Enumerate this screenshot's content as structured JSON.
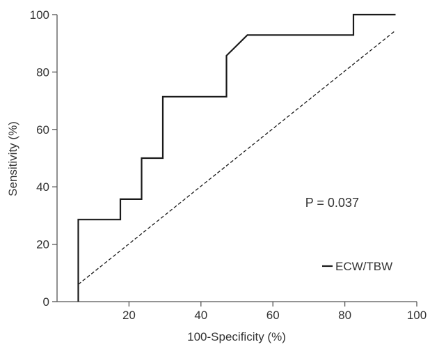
{
  "chart_data": {
    "type": "line",
    "xlabel": "100-Specificity (%)",
    "ylabel": "Sensitivity (%)",
    "xlim": [
      0,
      100
    ],
    "ylim": [
      0,
      100
    ],
    "x_ticks": [
      20,
      40,
      60,
      80,
      100
    ],
    "y_ticks": [
      0,
      20,
      40,
      60,
      80,
      100
    ],
    "grid": false,
    "series": [
      {
        "name": "ECW/TBW",
        "style": "solid",
        "x": [
          5.9,
          5.9,
          17.6,
          17.6,
          23.5,
          23.5,
          29.4,
          29.4,
          47.1,
          47.1,
          52.9,
          82.4,
          82.4,
          94.1
        ],
        "y": [
          0,
          28.6,
          28.6,
          35.7,
          35.7,
          50.0,
          50.0,
          71.4,
          71.4,
          85.7,
          92.9,
          92.9,
          100,
          100
        ]
      },
      {
        "style": "dashed",
        "x": [
          5.9,
          94.1
        ],
        "y": [
          6,
          94.5
        ]
      }
    ],
    "annotations": [
      {
        "text": "P = 0.037",
        "x": 69,
        "y": 33
      }
    ],
    "legend": {
      "placement": "bottom-right",
      "entries": [
        "ECW/TBW"
      ]
    },
    "colors": {
      "line": "#1a1a1a",
      "axis": "#555555",
      "text": "#333333"
    }
  }
}
